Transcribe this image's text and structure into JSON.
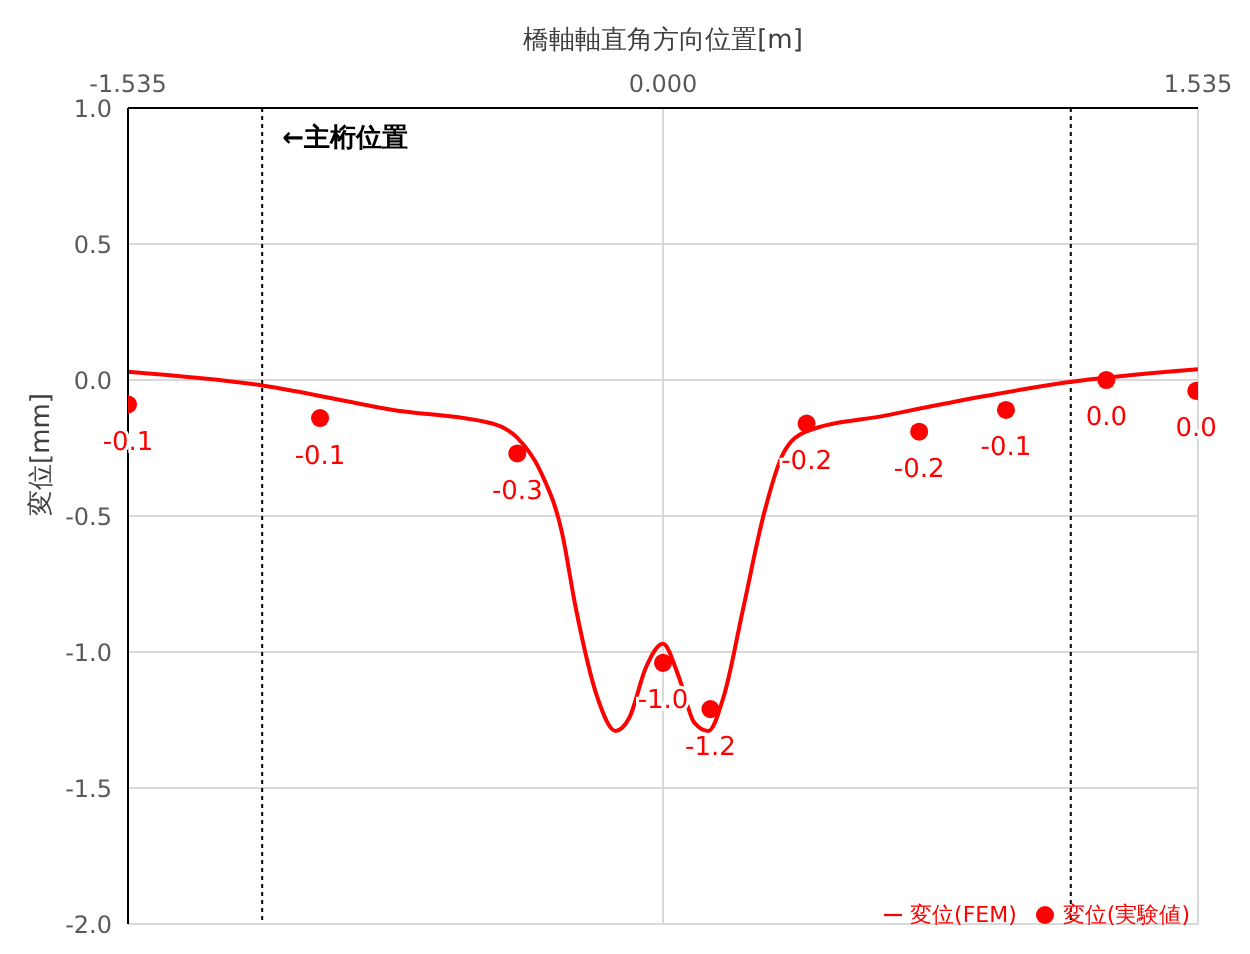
{
  "chart_data": {
    "type": "line",
    "xlabel": "橋軸軸直角方向位置[m]",
    "ylabel": "変位[mm]",
    "xlim": [
      -1.535,
      1.535
    ],
    "xticks": [
      -1.535,
      {
        "value": 0,
        "label": "0.000"
      },
      1.535
    ],
    "ylim": [
      -2.0,
      1.0
    ],
    "yticks": [
      {
        "value": -2,
        "label": "-2.0"
      },
      -1.5,
      {
        "value": -1,
        "label": "-1.0"
      },
      -0.5,
      {
        "value": 0,
        "label": "0.0"
      },
      0.5,
      {
        "value": 1,
        "label": "1.0"
      }
    ],
    "grid": true,
    "legend": "bottom right",
    "line_style": "solid",
    "ref_lines": [
      {
        "axis": "x",
        "value": -1.15,
        "label": "←主桁位置",
        "color": "#000000",
        "line_style": "dotted"
      },
      {
        "axis": "x",
        "value": 1.17,
        "color": "#000000",
        "line_style": "dotted"
      }
    ],
    "series": [
      {
        "name": "変位(FEM)",
        "color": "#ff0000",
        "marker": "none",
        "x": [
          -1.535,
          -1.15,
          -0.775,
          -0.49,
          -0.42,
          -0.35,
          -0.29,
          -0.25,
          -0.19,
          -0.136,
          -0.096,
          -0.05,
          0,
          0.045,
          0.09,
          0.13,
          0.175,
          0.23,
          0.29,
          0.345,
          0.41,
          0.64,
          0.92,
          1.15,
          1.535
        ],
        "values": [
          0.03,
          -0.02,
          -0.11,
          -0.16,
          -0.21,
          -0.34,
          -0.56,
          -0.84,
          -1.16,
          -1.29,
          -1.24,
          -1.06,
          -0.97,
          -1.09,
          -1.26,
          -1.29,
          -1.16,
          -0.84,
          -0.49,
          -0.27,
          -0.19,
          -0.13,
          -0.06,
          -0.01,
          0.04
        ]
      },
      {
        "name": "変位(実験値)",
        "type": "scatter",
        "color": "#ff0000",
        "marker": "circle",
        "x": [
          -1.535,
          -0.984,
          -0.418,
          0,
          0.136,
          0.412,
          0.735,
          0.984,
          1.272,
          1.53
        ],
        "values": [
          -0.09,
          -0.14,
          -0.27,
          -1.04,
          -1.21,
          -0.16,
          -0.19,
          -0.11,
          0.0,
          -0.04
        ],
        "value_labels": [
          "-0.1",
          "-0.1",
          "-0.3",
          "-1.0",
          "-1.2",
          "-0.2",
          "-0.2",
          "-0.1",
          "0.0",
          "0.0"
        ]
      }
    ]
  }
}
